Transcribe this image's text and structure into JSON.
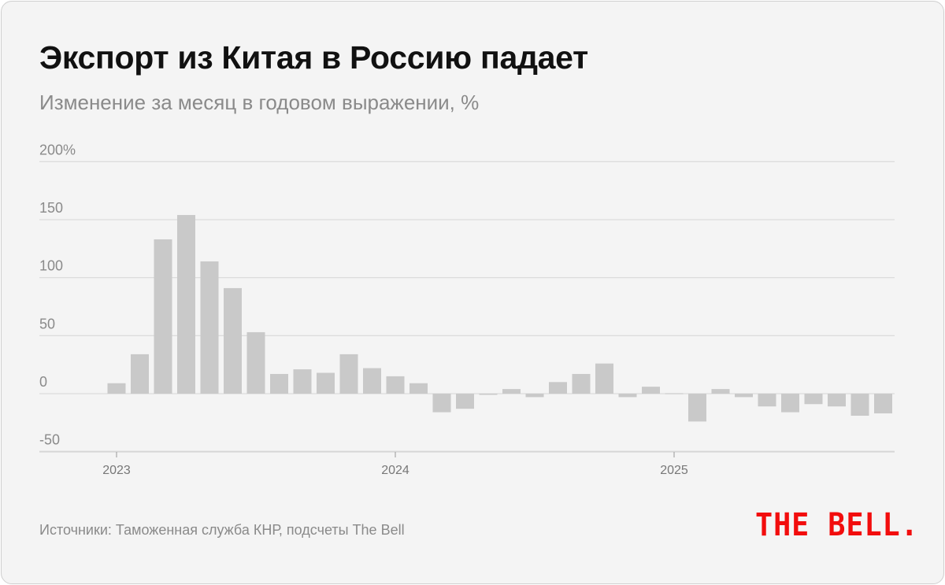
{
  "title": "Экспорт из Китая в Россию падает",
  "subtitle": "Изменение за месяц в годовом выражении, %",
  "source": "Источники: Таможенная служба КНР, подсчеты The Bell",
  "logo": "THE BELL.",
  "colors": {
    "bar": "#c9c9c9",
    "logo": "#f20d0d",
    "grid": "#dcdcdc"
  },
  "chart_data": {
    "type": "bar",
    "title": "Экспорт из Китая в Россию падает",
    "subtitle": "Изменение за месяц в годовом выражении, %",
    "xlabel": "",
    "ylabel": "%",
    "ylim": [
      -50,
      200
    ],
    "yticks": [
      {
        "v": 200,
        "label": "200%"
      },
      {
        "v": 150,
        "label": "150"
      },
      {
        "v": 100,
        "label": "100"
      },
      {
        "v": 50,
        "label": "50"
      },
      {
        "v": 0,
        "label": "0"
      },
      {
        "v": -50,
        "label": "-50"
      }
    ],
    "xticks": [
      {
        "i": 0,
        "label": "2023"
      },
      {
        "i": 12,
        "label": "2024"
      },
      {
        "i": 24,
        "label": "2025"
      }
    ],
    "categories": [
      "2023-01",
      "2023-02",
      "2023-03",
      "2023-04",
      "2023-05",
      "2023-06",
      "2023-07",
      "2023-08",
      "2023-09",
      "2023-10",
      "2023-11",
      "2023-12",
      "2024-01",
      "2024-02",
      "2024-03",
      "2024-04",
      "2024-05",
      "2024-06",
      "2024-07",
      "2024-08",
      "2024-09",
      "2024-10",
      "2024-11",
      "2024-12",
      "2025-01",
      "2025-02",
      "2025-03",
      "2025-04",
      "2025-05",
      "2025-06",
      "2025-07",
      "2025-08",
      "2025-09",
      "2025-10"
    ],
    "values": [
      9,
      34,
      133,
      154,
      114,
      91,
      53,
      17,
      21,
      18,
      34,
      22,
      15,
      9,
      -16,
      -13,
      -1,
      4,
      -3,
      10,
      17,
      26,
      -3,
      6,
      0.3,
      -24,
      4,
      -3,
      -11,
      -16,
      -9,
      -11,
      -19,
      -17
    ],
    "grid": true,
    "legend": "none"
  }
}
